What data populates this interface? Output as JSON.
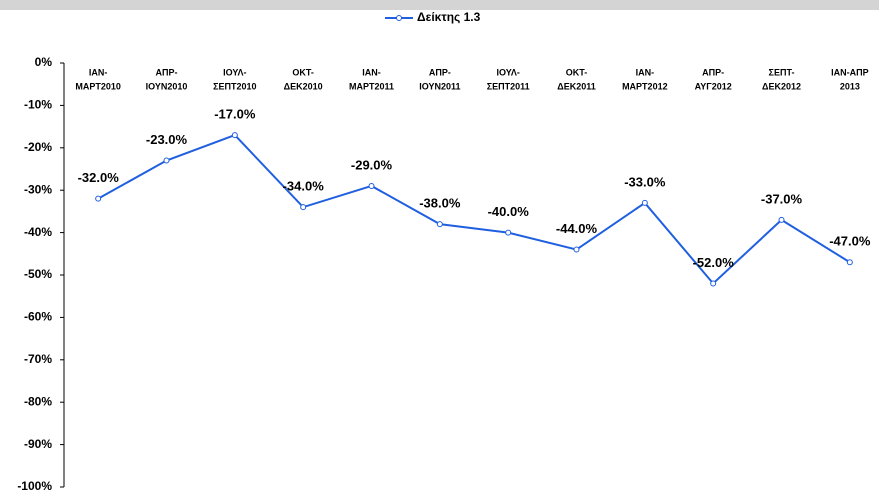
{
  "chart_data": {
    "type": "line",
    "categories": [
      [
        "ΙΑΝ-",
        "ΜΑΡΤ2010"
      ],
      [
        "ΑΠΡ-",
        "ΙΟΥΝ2010"
      ],
      [
        "ΙΟΥΛ-",
        "ΣΕΠΤ2010"
      ],
      [
        "ΟΚΤ-",
        "ΔΕΚ2010"
      ],
      [
        "ΙΑΝ-",
        "ΜΑΡΤ2011"
      ],
      [
        "ΑΠΡ-",
        "ΙΟΥΝ2011"
      ],
      [
        "ΙΟΥΛ-",
        "ΣΕΠΤ2011"
      ],
      [
        "ΟΚΤ-",
        "ΔΕΚ2011"
      ],
      [
        "ΙΑΝ-",
        "ΜΑΡΤ2012"
      ],
      [
        "ΑΠΡ-",
        "ΑΥΓ2012"
      ],
      [
        "ΣΕΠΤ-",
        "ΔΕΚ2012"
      ],
      [
        "ΙΑΝ-ΑΠΡ",
        "2013"
      ]
    ],
    "series": [
      {
        "name": "Δείκτης 1.3",
        "color": "#1f5fe0",
        "values": [
          -32,
          -23,
          -17,
          -34,
          -29,
          -38,
          -40,
          -44,
          -33,
          -52,
          -37,
          -47
        ],
        "value_labels": [
          "-32.0%",
          "-23.0%",
          "-17.0%",
          "-34.0%",
          "-29.0%",
          "-38.0%",
          "-40.0%",
          "-44.0%",
          "-33.0%",
          "-52.0%",
          "-37.0%",
          "-47.0%"
        ]
      }
    ],
    "ylim": [
      -100,
      0
    ],
    "yticks": [
      {
        "value": 0,
        "label": "0%"
      },
      {
        "value": -10,
        "label": "-10%"
      },
      {
        "value": -20,
        "label": "-20%"
      },
      {
        "value": -30,
        "label": "-30%"
      },
      {
        "value": -40,
        "label": "-40%"
      },
      {
        "value": -50,
        "label": "-50%"
      },
      {
        "value": -60,
        "label": "-60%"
      },
      {
        "value": -70,
        "label": "-70%"
      },
      {
        "value": -80,
        "label": "-80%"
      },
      {
        "value": -90,
        "label": "-90%"
      },
      {
        "value": -100,
        "label": "-100%"
      }
    ],
    "grid": false,
    "legend": "top"
  }
}
